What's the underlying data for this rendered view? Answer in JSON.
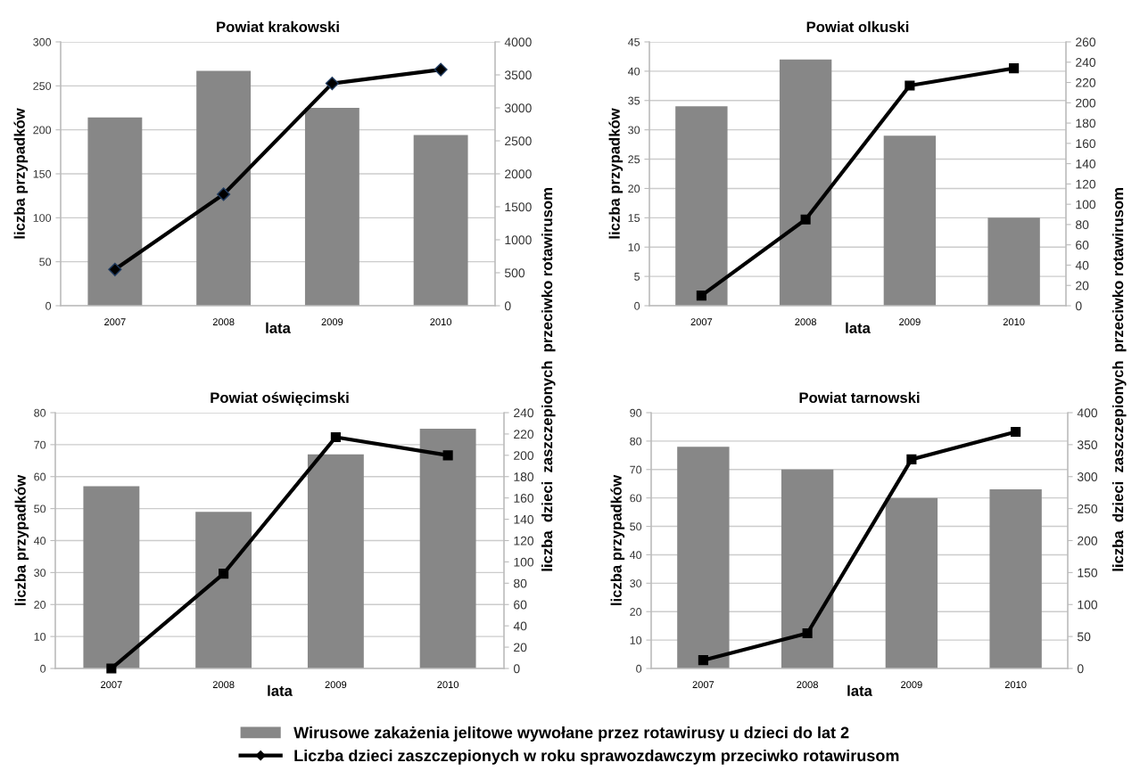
{
  "chart_data": [
    {
      "type": "bar",
      "title": "Powiat krakowski",
      "xlabel": "lata",
      "ylabel": "liczba przypadków",
      "y2label": "liczba  dzieci  zaszczepionych  przeciwko rotawirusom",
      "categories": [
        "2007",
        "2008",
        "2009",
        "2010"
      ],
      "series": [
        {
          "name": "Wirusowe zakażenia jelitowe wywołane przez rotawirusy u dzieci do lat 2",
          "color": "#878787",
          "values": [
            214,
            267,
            225,
            194
          ]
        },
        {
          "name": "Liczba dzieci zaszczepionych w roku sprawozdawczym przeciwko rotawirusom",
          "type": "line",
          "axis": "y2",
          "color": "#000000",
          "marker": "diamond",
          "values": [
            550,
            1690,
            3370,
            3580
          ]
        }
      ],
      "ylim": [
        0,
        300
      ],
      "yticks": [
        0,
        50,
        100,
        150,
        200,
        250,
        300
      ],
      "y2lim": [
        0,
        4000
      ],
      "y2ticks": [
        0,
        500,
        1000,
        1500,
        2000,
        2500,
        3000,
        3500,
        4000
      ],
      "grid": "y",
      "legend": "bottom"
    },
    {
      "type": "bar",
      "title": "Powiat olkuski",
      "xlabel": "lata",
      "ylabel": "liczba przypadków",
      "y2label": "liczba  dzieci  zaszczepionych  przeciwko rotawirusom",
      "categories": [
        "2007",
        "2008",
        "2009",
        "2010"
      ],
      "series": [
        {
          "color": "#878787",
          "values": [
            34,
            42,
            29,
            15
          ]
        },
        {
          "type": "line",
          "axis": "y2",
          "color": "#000000",
          "marker": "square",
          "values": [
            10,
            85,
            217,
            234
          ]
        }
      ],
      "ylim": [
        0,
        45
      ],
      "yticks": [
        0,
        5,
        10,
        15,
        20,
        25,
        30,
        35,
        40,
        45
      ],
      "y2lim": [
        0,
        260
      ],
      "y2ticks": [
        0,
        20,
        40,
        60,
        80,
        100,
        120,
        140,
        160,
        180,
        200,
        220,
        240,
        260
      ],
      "grid": "y"
    },
    {
      "type": "bar",
      "title": "Powiat oświęcimski",
      "xlabel": "lata",
      "ylabel": "liczba przypadków",
      "categories": [
        "2007",
        "2008",
        "2009",
        "2010"
      ],
      "series": [
        {
          "color": "#878787",
          "values": [
            57,
            49,
            67,
            75
          ]
        },
        {
          "type": "line",
          "axis": "y2",
          "color": "#000000",
          "marker": "square",
          "values": [
            0,
            89,
            217,
            200
          ]
        }
      ],
      "ylim": [
        0,
        80
      ],
      "yticks": [
        0,
        10,
        20,
        30,
        40,
        50,
        60,
        70,
        80
      ],
      "y2lim": [
        0,
        240
      ],
      "y2ticks": [
        0,
        20,
        40,
        60,
        80,
        100,
        120,
        140,
        160,
        180,
        200,
        220,
        240
      ],
      "grid": "y"
    },
    {
      "type": "bar",
      "title": "Powiat tarnowski",
      "xlabel": "lata",
      "ylabel": "liczba przypadków",
      "categories": [
        "2007",
        "2008",
        "2009",
        "2010"
      ],
      "series": [
        {
          "color": "#878787",
          "values": [
            78,
            70,
            60,
            63
          ]
        },
        {
          "type": "line",
          "axis": "y2",
          "color": "#000000",
          "marker": "square",
          "values": [
            13,
            55,
            327,
            370
          ]
        }
      ],
      "ylim": [
        0,
        90
      ],
      "yticks": [
        0,
        10,
        20,
        30,
        40,
        50,
        60,
        70,
        80,
        90
      ],
      "y2lim": [
        0,
        400
      ],
      "y2ticks": [
        0,
        50,
        100,
        150,
        200,
        250,
        300,
        350,
        400
      ],
      "grid": "y"
    }
  ]
}
